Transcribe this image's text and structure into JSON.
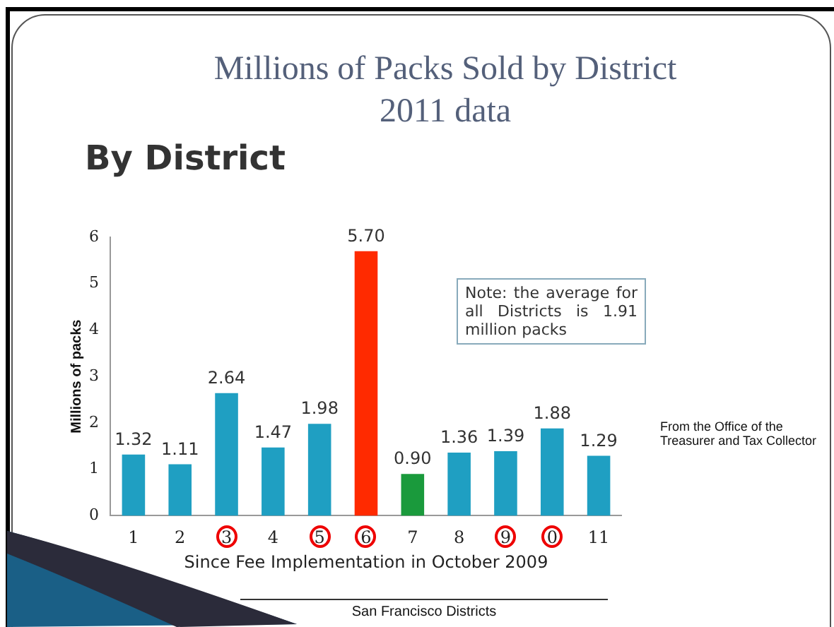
{
  "chart_data": {
    "type": "bar",
    "title": "Millions of Packs Sold by District",
    "subtitle": "2011 data",
    "xlabel": "Since Fee Implementation in October 2009",
    "ylabel": "Millions of packs",
    "categories": [
      "1",
      "2",
      "3",
      "4",
      "5",
      "6",
      "7",
      "8",
      "9",
      "0",
      "11"
    ],
    "values": [
      1.32,
      1.11,
      2.64,
      1.47,
      1.98,
      5.7,
      0.9,
      1.36,
      1.39,
      1.88,
      1.29
    ],
    "value_labels": [
      "1.32",
      "1.11",
      "2.64",
      "1.47",
      "1.98",
      "5.70",
      "0.90",
      "1.36",
      "1.39",
      "1.88",
      "1.29"
    ],
    "colors": [
      "#1f9fc2",
      "#1f9fc2",
      "#1f9fc2",
      "#1f9fc2",
      "#1f9fc2",
      "#ff2a00",
      "#1a9a3c",
      "#1f9fc2",
      "#1f9fc2",
      "#1f9fc2",
      "#1f9fc2"
    ],
    "ylim": [
      0,
      6
    ],
    "yticks": [
      0,
      1,
      2,
      3,
      4,
      5,
      6
    ],
    "grid": false,
    "legend": false,
    "annotations": [
      "By District",
      "Note: the average for all Districts is 1.91 million packs",
      "From the Office of the Treasurer and Tax Collector",
      "San Francisco Districts"
    ]
  }
}
